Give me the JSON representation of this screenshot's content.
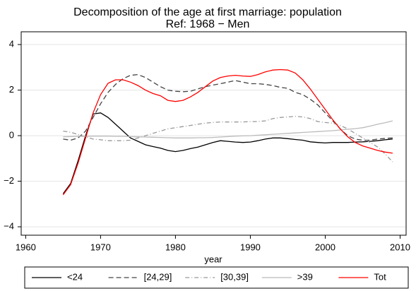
{
  "chart_data": {
    "type": "line",
    "title": "Decomposition of the age at first marriage: population",
    "subtitle": "Ref: 1968 − Men",
    "xlabel": "year",
    "x": [
      1965,
      1966,
      1967,
      1968,
      1969,
      1970,
      1971,
      1972,
      1973,
      1974,
      1975,
      1976,
      1977,
      1978,
      1979,
      1980,
      1981,
      1982,
      1983,
      1984,
      1985,
      1986,
      1987,
      1988,
      1989,
      1990,
      1991,
      1992,
      1993,
      1994,
      1995,
      1996,
      1997,
      1998,
      1999,
      2000,
      2001,
      2002,
      2003,
      2004,
      2005,
      2006,
      2007,
      2008,
      2009
    ],
    "series": [
      {
        "name": "<24",
        "color": "#000000",
        "line_style": "solid",
        "values": [
          -2.55,
          -2.1,
          -1.1,
          0,
          0.95,
          1.0,
          0.8,
          0.5,
          0.2,
          -0.1,
          -0.25,
          -0.4,
          -0.48,
          -0.55,
          -0.65,
          -0.7,
          -0.65,
          -0.57,
          -0.5,
          -0.4,
          -0.3,
          -0.22,
          -0.25,
          -0.28,
          -0.3,
          -0.28,
          -0.22,
          -0.15,
          -0.1,
          -0.1,
          -0.13,
          -0.17,
          -0.2,
          -0.27,
          -0.3,
          -0.32,
          -0.3,
          -0.3,
          -0.3,
          -0.28,
          -0.27,
          -0.25,
          -0.22,
          -0.18,
          -0.15
        ]
      },
      {
        "name": "[24,29]",
        "color": "#444444",
        "line_style": "dashed",
        "values": [
          -0.15,
          -0.2,
          -0.1,
          0.2,
          0.8,
          1.4,
          1.9,
          2.25,
          2.5,
          2.65,
          2.68,
          2.55,
          2.35,
          2.15,
          2.0,
          1.95,
          1.93,
          1.95,
          2.05,
          2.15,
          2.22,
          2.28,
          2.35,
          2.42,
          2.35,
          2.28,
          2.28,
          2.25,
          2.2,
          2.12,
          2.08,
          1.9,
          1.8,
          1.6,
          1.35,
          1.0,
          0.65,
          0.3,
          0.0,
          -0.15,
          -0.2,
          -0.2,
          -0.15,
          -0.12,
          -0.1
        ]
      },
      {
        "name": "[30,39]",
        "color": "#999999",
        "line_style": "dashdot",
        "values": [
          0.2,
          0.15,
          0.05,
          -0.05,
          -0.15,
          -0.18,
          -0.22,
          -0.22,
          -0.22,
          -0.2,
          -0.1,
          0.0,
          0.1,
          0.2,
          0.3,
          0.35,
          0.4,
          0.45,
          0.5,
          0.55,
          0.58,
          0.6,
          0.6,
          0.6,
          0.6,
          0.62,
          0.62,
          0.65,
          0.75,
          0.8,
          0.82,
          0.85,
          0.82,
          0.75,
          0.62,
          0.58,
          0.55,
          0.45,
          0.3,
          0.1,
          -0.1,
          -0.3,
          -0.5,
          -0.8,
          -1.15
        ]
      },
      {
        "name": ">39",
        "color": "#bbbbbb",
        "line_style": "solid",
        "values": [
          -0.05,
          -0.04,
          -0.03,
          -0.03,
          -0.02,
          -0.02,
          -0.02,
          -0.03,
          -0.03,
          -0.04,
          -0.05,
          -0.06,
          -0.07,
          -0.08,
          -0.09,
          -0.1,
          -0.1,
          -0.1,
          -0.09,
          -0.09,
          -0.08,
          -0.06,
          -0.04,
          -0.02,
          -0.01,
          0,
          0.02,
          0.04,
          0.06,
          0.08,
          0.1,
          0.12,
          0.14,
          0.16,
          0.18,
          0.2,
          0.22,
          0.25,
          0.28,
          0.31,
          0.35,
          0.42,
          0.5,
          0.57,
          0.65
        ]
      },
      {
        "name": "Tot",
        "color": "#ff0000",
        "line_style": "solid",
        "values": [
          -2.6,
          -2.15,
          -1.2,
          -0.1,
          1.0,
          1.8,
          2.3,
          2.45,
          2.45,
          2.35,
          2.2,
          2.0,
          1.85,
          1.75,
          1.55,
          1.5,
          1.55,
          1.7,
          1.9,
          2.15,
          2.4,
          2.55,
          2.62,
          2.65,
          2.62,
          2.6,
          2.68,
          2.8,
          2.88,
          2.9,
          2.88,
          2.75,
          2.45,
          2.05,
          1.6,
          1.15,
          0.7,
          0.3,
          -0.05,
          -0.3,
          -0.45,
          -0.55,
          -0.65,
          -0.72,
          -0.77
        ]
      }
    ],
    "xlim": [
      1959.4,
      2010.8
    ],
    "xticks": [
      1960,
      1970,
      1980,
      1990,
      2000,
      2010
    ],
    "ylim": [
      -4.37,
      4.56
    ],
    "yticks": [
      {
        "value": -4,
        "label": "−4"
      },
      {
        "value": -2,
        "label": "−2"
      },
      0,
      2,
      4
    ],
    "grid": true,
    "legend": "bottom"
  }
}
